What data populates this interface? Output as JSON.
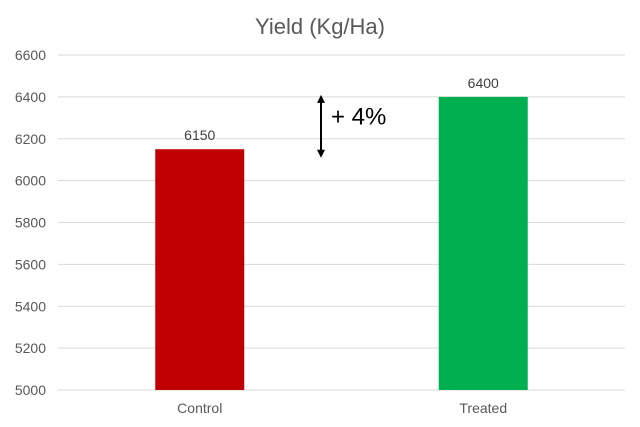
{
  "chart_data": {
    "type": "bar",
    "title": "Yield (Kg/Ha)",
    "categories": [
      "Control",
      "Treated"
    ],
    "values": [
      6150,
      6400
    ],
    "colors": [
      "#c00000",
      "#00b050"
    ],
    "ylim": [
      5000,
      6600
    ],
    "yticks": [
      5000,
      5200,
      5400,
      5600,
      5800,
      6000,
      6200,
      6400,
      6600
    ],
    "ytick_labels": [
      "5000",
      "5200",
      "5400",
      "5600",
      "5800",
      "6000",
      "6200",
      "6400",
      "6600"
    ],
    "data_labels": [
      "6150",
      "6400"
    ],
    "grid": true,
    "legend": "none",
    "annotation": {
      "text": "+ 4%",
      "arrow_from": 6100,
      "arrow_to": 6400
    }
  }
}
